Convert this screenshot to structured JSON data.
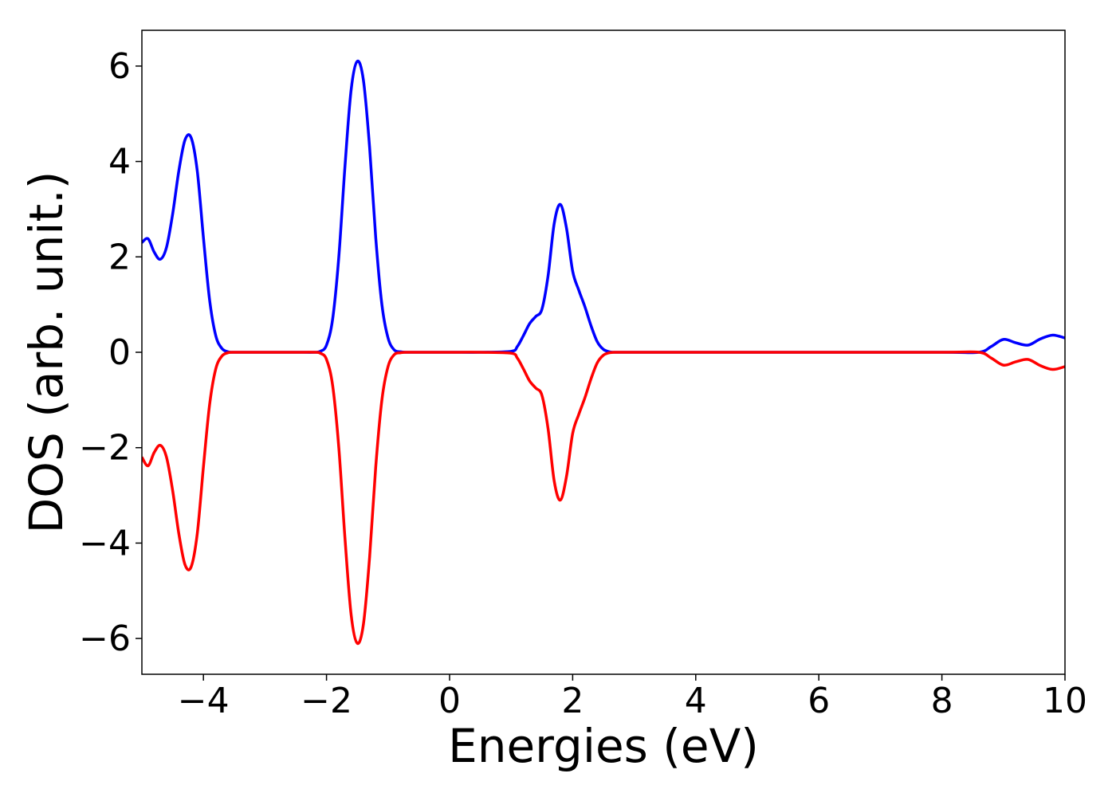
{
  "chart_data": {
    "type": "line",
    "title": "",
    "xlabel": "Energies (eV)",
    "ylabel": "DOS (arb. unit.)",
    "xlim": [
      -5,
      10
    ],
    "ylim": [
      -6.75,
      6.75
    ],
    "grid": false,
    "legend": "none",
    "xticks": [
      {
        "value": -4,
        "label": "−4"
      },
      {
        "value": -2,
        "label": "−2"
      },
      {
        "value": 0,
        "label": "0"
      },
      {
        "value": 2,
        "label": "2"
      },
      {
        "value": 4,
        "label": "4"
      },
      {
        "value": 6,
        "label": "6"
      },
      {
        "value": 8,
        "label": "8"
      },
      {
        "value": 10,
        "label": "10"
      }
    ],
    "yticks": [
      {
        "value": -6,
        "label": "−6"
      },
      {
        "value": -4,
        "label": "−4"
      },
      {
        "value": -2,
        "label": "−2"
      },
      {
        "value": 0,
        "label": "0"
      },
      {
        "value": 2,
        "label": "2"
      },
      {
        "value": 4,
        "label": "4"
      },
      {
        "value": 6,
        "label": "6"
      }
    ],
    "series": [
      {
        "color": "#0000ff",
        "x": [
          -5.0,
          -4.9,
          -4.8,
          -4.7,
          -4.6,
          -4.5,
          -4.4,
          -4.3,
          -4.2,
          -4.1,
          -4.0,
          -3.9,
          -3.8,
          -3.7,
          -3.6,
          -3.5,
          -3.4,
          -3.0,
          -2.5,
          -2.2,
          -2.1,
          -2.0,
          -1.9,
          -1.8,
          -1.7,
          -1.6,
          -1.5,
          -1.4,
          -1.3,
          -1.2,
          -1.1,
          -1.0,
          -0.9,
          -0.8,
          -0.7,
          -0.6,
          -0.5,
          0.0,
          0.5,
          1.0,
          1.1,
          1.2,
          1.3,
          1.4,
          1.5,
          1.6,
          1.7,
          1.8,
          1.9,
          2.0,
          2.1,
          2.2,
          2.3,
          2.4,
          2.5,
          2.6,
          2.7,
          2.8,
          2.9,
          3.0,
          4.0,
          6.0,
          8.0,
          8.6,
          8.8,
          9.0,
          9.2,
          9.4,
          9.6,
          9.8,
          10.0
        ],
        "y": [
          2.3,
          2.38,
          2.1,
          1.95,
          2.2,
          2.9,
          3.8,
          4.45,
          4.5,
          3.8,
          2.4,
          1.1,
          0.35,
          0.08,
          0.01,
          0.0,
          0.0,
          0.0,
          0.0,
          0.0,
          0.02,
          0.15,
          0.7,
          2.0,
          3.9,
          5.5,
          6.1,
          5.7,
          4.3,
          2.4,
          1.0,
          0.3,
          0.05,
          0.01,
          0.0,
          0.0,
          0.0,
          0.0,
          0.0,
          0.02,
          0.12,
          0.35,
          0.6,
          0.75,
          0.9,
          1.6,
          2.7,
          3.1,
          2.6,
          1.7,
          1.3,
          0.95,
          0.55,
          0.22,
          0.06,
          0.01,
          0.0,
          0.0,
          0.0,
          0.0,
          0.0,
          0.0,
          0.0,
          0.0,
          0.12,
          0.27,
          0.2,
          0.15,
          0.28,
          0.36,
          0.3
        ]
      },
      {
        "color": "#ff0000",
        "x": [
          -5.0,
          -4.9,
          -4.8,
          -4.7,
          -4.6,
          -4.5,
          -4.4,
          -4.3,
          -4.2,
          -4.1,
          -4.0,
          -3.9,
          -3.8,
          -3.7,
          -3.6,
          -3.5,
          -3.4,
          -3.0,
          -2.5,
          -2.2,
          -2.1,
          -2.0,
          -1.9,
          -1.8,
          -1.7,
          -1.6,
          -1.5,
          -1.4,
          -1.3,
          -1.2,
          -1.1,
          -1.0,
          -0.9,
          -0.8,
          -0.7,
          -0.6,
          -0.5,
          0.0,
          0.5,
          1.0,
          1.1,
          1.2,
          1.3,
          1.4,
          1.5,
          1.6,
          1.7,
          1.8,
          1.9,
          2.0,
          2.1,
          2.2,
          2.3,
          2.4,
          2.5,
          2.6,
          2.7,
          2.8,
          2.9,
          3.0,
          4.0,
          6.0,
          8.0,
          8.6,
          8.8,
          9.0,
          9.2,
          9.4,
          9.6,
          9.8,
          10.0
        ],
        "y": [
          -2.2,
          -2.38,
          -2.1,
          -1.95,
          -2.2,
          -2.9,
          -3.8,
          -4.45,
          -4.5,
          -3.8,
          -2.4,
          -1.1,
          -0.35,
          -0.08,
          -0.01,
          0.0,
          0.0,
          0.0,
          0.0,
          0.0,
          -0.02,
          -0.15,
          -0.7,
          -2.0,
          -3.9,
          -5.5,
          -6.1,
          -5.7,
          -4.3,
          -2.4,
          -1.0,
          -0.3,
          -0.05,
          -0.01,
          0.0,
          0.0,
          0.0,
          0.0,
          0.0,
          -0.02,
          -0.12,
          -0.35,
          -0.6,
          -0.75,
          -0.9,
          -1.6,
          -2.7,
          -3.1,
          -2.6,
          -1.7,
          -1.3,
          -0.95,
          -0.55,
          -0.22,
          -0.06,
          -0.01,
          0.0,
          0.0,
          0.0,
          0.0,
          0.0,
          0.0,
          0.0,
          0.0,
          -0.12,
          -0.27,
          -0.2,
          -0.15,
          -0.28,
          -0.36,
          -0.3
        ]
      }
    ]
  }
}
